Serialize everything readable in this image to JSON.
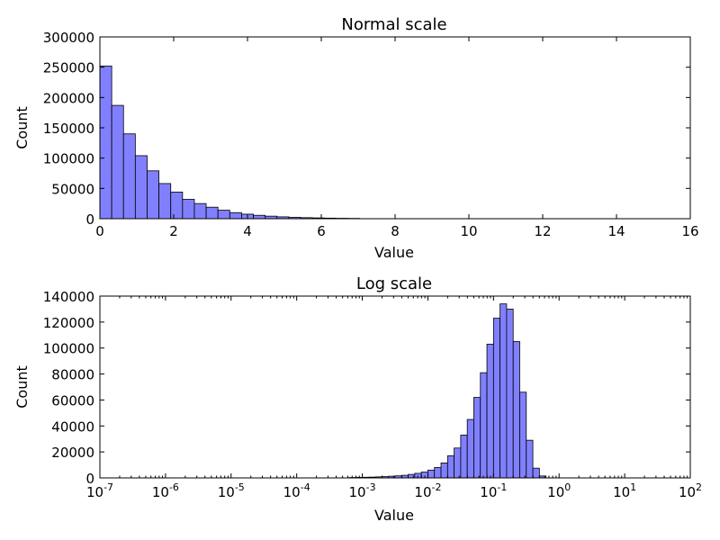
{
  "chart_data": [
    {
      "type": "bar",
      "title": "Normal scale",
      "xlabel": "Value",
      "ylabel": "Count",
      "xscale": "linear",
      "xlim": [
        0,
        16
      ],
      "ylim": [
        0,
        300000
      ],
      "xticks": [
        0,
        2,
        4,
        6,
        8,
        10,
        12,
        14,
        16
      ],
      "xtick_labels": [
        "0",
        "2",
        "4",
        "6",
        "8",
        "10",
        "12",
        "14",
        "16"
      ],
      "yticks": [
        0,
        50000,
        100000,
        150000,
        200000,
        250000,
        300000
      ],
      "ytick_labels": [
        "0",
        "50000",
        "100000",
        "150000",
        "200000",
        "250000",
        "300000"
      ],
      "bar_color": "#8080ff",
      "edge_color": "#000000",
      "bins_start": 0,
      "bin_width": 0.32,
      "values": [
        252000,
        187000,
        140000,
        104000,
        79000,
        58000,
        44000,
        32000,
        25000,
        19000,
        14000,
        10000,
        7500,
        5600,
        4200,
        3100,
        2300,
        1700,
        1300,
        950,
        700,
        520
      ]
    },
    {
      "type": "bar",
      "title": "Log scale",
      "xlabel": "Value",
      "ylabel": "Count",
      "xscale": "log",
      "xlim": [
        1e-07,
        100
      ],
      "ylim": [
        0,
        140000
      ],
      "xticks": [
        1e-07,
        1e-06,
        1e-05,
        0.0001,
        0.001,
        0.01,
        0.1,
        1,
        10,
        100
      ],
      "xtick_base": [
        "10",
        "10",
        "10",
        "10",
        "10",
        "10",
        "10",
        "10",
        "10",
        "10"
      ],
      "xtick_exponents": [
        "-7",
        "-6",
        "-5",
        "-4",
        "-3",
        "-2",
        "-1",
        "0",
        "1",
        "2"
      ],
      "yticks": [
        0,
        20000,
        40000,
        60000,
        80000,
        100000,
        120000,
        140000
      ],
      "ytick_labels": [
        "0",
        "20000",
        "40000",
        "60000",
        "80000",
        "100000",
        "120000",
        "140000"
      ],
      "bar_color": "#8080ff",
      "edge_color": "#000000",
      "log_bins_start": 1e-07,
      "log_bin_factor": 1.2589254,
      "values": [
        0,
        0,
        0,
        0,
        0,
        0,
        0,
        0,
        0,
        0,
        0,
        0,
        0,
        0,
        0,
        0,
        0,
        0,
        0,
        0,
        0,
        0,
        0,
        0,
        0,
        0,
        0,
        0,
        0,
        0,
        0,
        0,
        0,
        0,
        0,
        0,
        0,
        0,
        300,
        400,
        500,
        600,
        800,
        1000,
        1300,
        1600,
        2000,
        2700,
        3500,
        4500,
        6000,
        8000,
        11500,
        17000,
        23000,
        33000,
        45000,
        62000,
        81000,
        103000,
        123000,
        134000,
        130000,
        105000,
        66000,
        29000,
        7500,
        1500
      ]
    }
  ]
}
